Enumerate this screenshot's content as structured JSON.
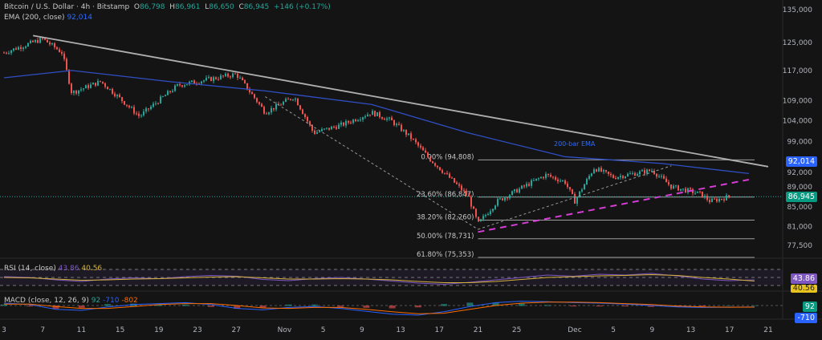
{
  "header": {
    "symbol": "Bitcoin / U.S. Dollar · 4h · Bitstamp",
    "o_label": "O",
    "o": "86,798",
    "h_label": "H",
    "h": "86,961",
    "l_label": "L",
    "l": "86,650",
    "c_label": "C",
    "c": "86,945",
    "change": "+146 (+0.17%)",
    "ema_label": "EMA (200, close)",
    "ema_value": "92,014"
  },
  "rsi": {
    "label": "RSI (14, close)",
    "value": "43.86",
    "signal": "40.56"
  },
  "macd": {
    "label": "MACD (close, 12, 26, 9)",
    "hist": "92",
    "macd": "-710",
    "signal": "-802"
  },
  "annotations": {
    "ema_text": "200-bar EMA"
  },
  "colors": {
    "bg": "#141414",
    "up": "#26a69a",
    "down": "#ef5350",
    "ema": "#2f4fc4",
    "trend": "#b0b0b0",
    "support": "#d63cd6",
    "rsi": "#7e57c2",
    "rsi_ma": "#d4b23a",
    "macd": "#2962ff",
    "macd_signal": "#ff6d00"
  },
  "chart_data": {
    "type": "candlestick",
    "y_scale": "log",
    "ylim": [
      74000,
      137000
    ],
    "y_ticks": [
      "135,000",
      "125,000",
      "117,000",
      "109,000",
      "104,000",
      "99,000",
      "92,000",
      "89,000",
      "85,000",
      "81,000",
      "77,500"
    ],
    "y_tick_values": [
      135000,
      125000,
      117000,
      109000,
      104000,
      99000,
      92000,
      89000,
      85000,
      81000,
      77500
    ],
    "x_ticks": [
      "3",
      "7",
      "11",
      "15",
      "19",
      "23",
      "27",
      "Nov",
      "5",
      "9",
      "13",
      "17",
      "21",
      "25",
      "Dec",
      "5",
      "9",
      "13",
      "17",
      "21"
    ],
    "x_tick_dates": [
      "10-03",
      "10-07",
      "10-11",
      "10-15",
      "10-19",
      "10-23",
      "10-27",
      "11-01",
      "11-05",
      "11-09",
      "11-13",
      "11-17",
      "11-21",
      "11-25",
      "12-01",
      "12-05",
      "12-09",
      "12-13",
      "12-17",
      "12-21"
    ],
    "price_path": [
      [
        "10-03",
        122000
      ],
      [
        "10-07",
        126000
      ],
      [
        "10-09",
        122000
      ],
      [
        "10-10",
        111000
      ],
      [
        "10-13",
        114000
      ],
      [
        "10-17",
        105000
      ],
      [
        "10-21",
        113000
      ],
      [
        "10-27",
        116000
      ],
      [
        "10-30",
        106000
      ],
      [
        "11-02",
        110000
      ],
      [
        "11-04",
        101000
      ],
      [
        "11-07",
        103000
      ],
      [
        "11-10",
        106000
      ],
      [
        "11-12",
        104000
      ],
      [
        "11-14",
        100000
      ],
      [
        "11-16",
        95000
      ],
      [
        "11-18",
        91000
      ],
      [
        "11-20",
        87000
      ],
      [
        "11-21",
        81500
      ],
      [
        "11-23",
        86000
      ],
      [
        "11-28",
        91500
      ],
      [
        "11-30",
        90000
      ],
      [
        "12-01",
        86000
      ],
      [
        "12-03",
        93000
      ],
      [
        "12-05",
        91000
      ],
      [
        "12-09",
        92500
      ],
      [
        "12-11",
        89000
      ],
      [
        "12-14",
        87500
      ],
      [
        "12-15",
        86000
      ],
      [
        "12-17",
        86945
      ]
    ],
    "ema200": [
      [
        "10-03",
        115000
      ],
      [
        "10-10",
        117000
      ],
      [
        "10-20",
        114000
      ],
      [
        "10-30",
        111500
      ],
      [
        "11-10",
        108000
      ],
      [
        "11-20",
        101000
      ],
      [
        "11-30",
        95500
      ],
      [
        "12-10",
        94000
      ],
      [
        "12-19",
        91800
      ]
    ],
    "trendline": [
      [
        "10-06",
        127000
      ],
      [
        "12-21",
        93300
      ]
    ],
    "support_line": [
      [
        "11-21",
        80000
      ],
      [
        "12-19",
        90500
      ]
    ],
    "fib_start": "11-21",
    "fib_levels": [
      {
        "label": "0.00% (94,808)",
        "value": 94808
      },
      {
        "label": "23.60% (86,847)",
        "value": 86847
      },
      {
        "label": "38.20% (82,260)",
        "value": 82260
      },
      {
        "label": "50.00% (78,731)",
        "value": 78731
      },
      {
        "label": "61.80% (75,353)",
        "value": 75353
      }
    ],
    "last_price": {
      "label": "86,945",
      "value": 86945
    },
    "ema_last": {
      "label": "92,014",
      "value": 92014
    },
    "rsi_series": [
      52,
      50,
      44,
      40,
      46,
      49,
      47,
      52,
      55,
      53,
      45,
      42,
      47,
      50,
      46,
      41,
      36,
      33,
      38,
      44,
      50,
      56,
      53,
      58,
      56,
      60,
      54,
      46,
      42,
      44
    ],
    "rsi_ma_series": [
      50,
      49,
      46,
      43,
      44,
      46,
      47,
      49,
      51,
      52,
      49,
      46,
      46,
      47,
      46,
      44,
      40,
      37,
      37,
      40,
      45,
      50,
      52,
      54,
      55,
      57,
      55,
      50,
      46,
      41
    ],
    "rsi_levels": [
      70,
      50,
      30
    ],
    "macd_series": [
      0.5,
      0.2,
      -0.8,
      -1,
      -0.3,
      0.2,
      0.4,
      0.6,
      0.2,
      -0.6,
      -0.9,
      -0.4,
      -0.2,
      -0.6,
      -1.2,
      -1.8,
      -2,
      -1.3,
      -0.2,
      0.6,
      0.9,
      0.8,
      0.6,
      0.5,
      0.3,
      0,
      -0.3,
      -0.4,
      -0.35,
      -0.3
    ],
    "macd_signal_series": [
      0.3,
      0.3,
      -0.2,
      -0.6,
      -0.6,
      -0.2,
      0.2,
      0.4,
      0.4,
      0,
      -0.5,
      -0.6,
      -0.4,
      -0.4,
      -0.8,
      -1.3,
      -1.7,
      -1.6,
      -0.8,
      0,
      0.5,
      0.7,
      0.7,
      0.6,
      0.4,
      0.2,
      -0.1,
      -0.3,
      -0.35,
      -0.33
    ]
  }
}
